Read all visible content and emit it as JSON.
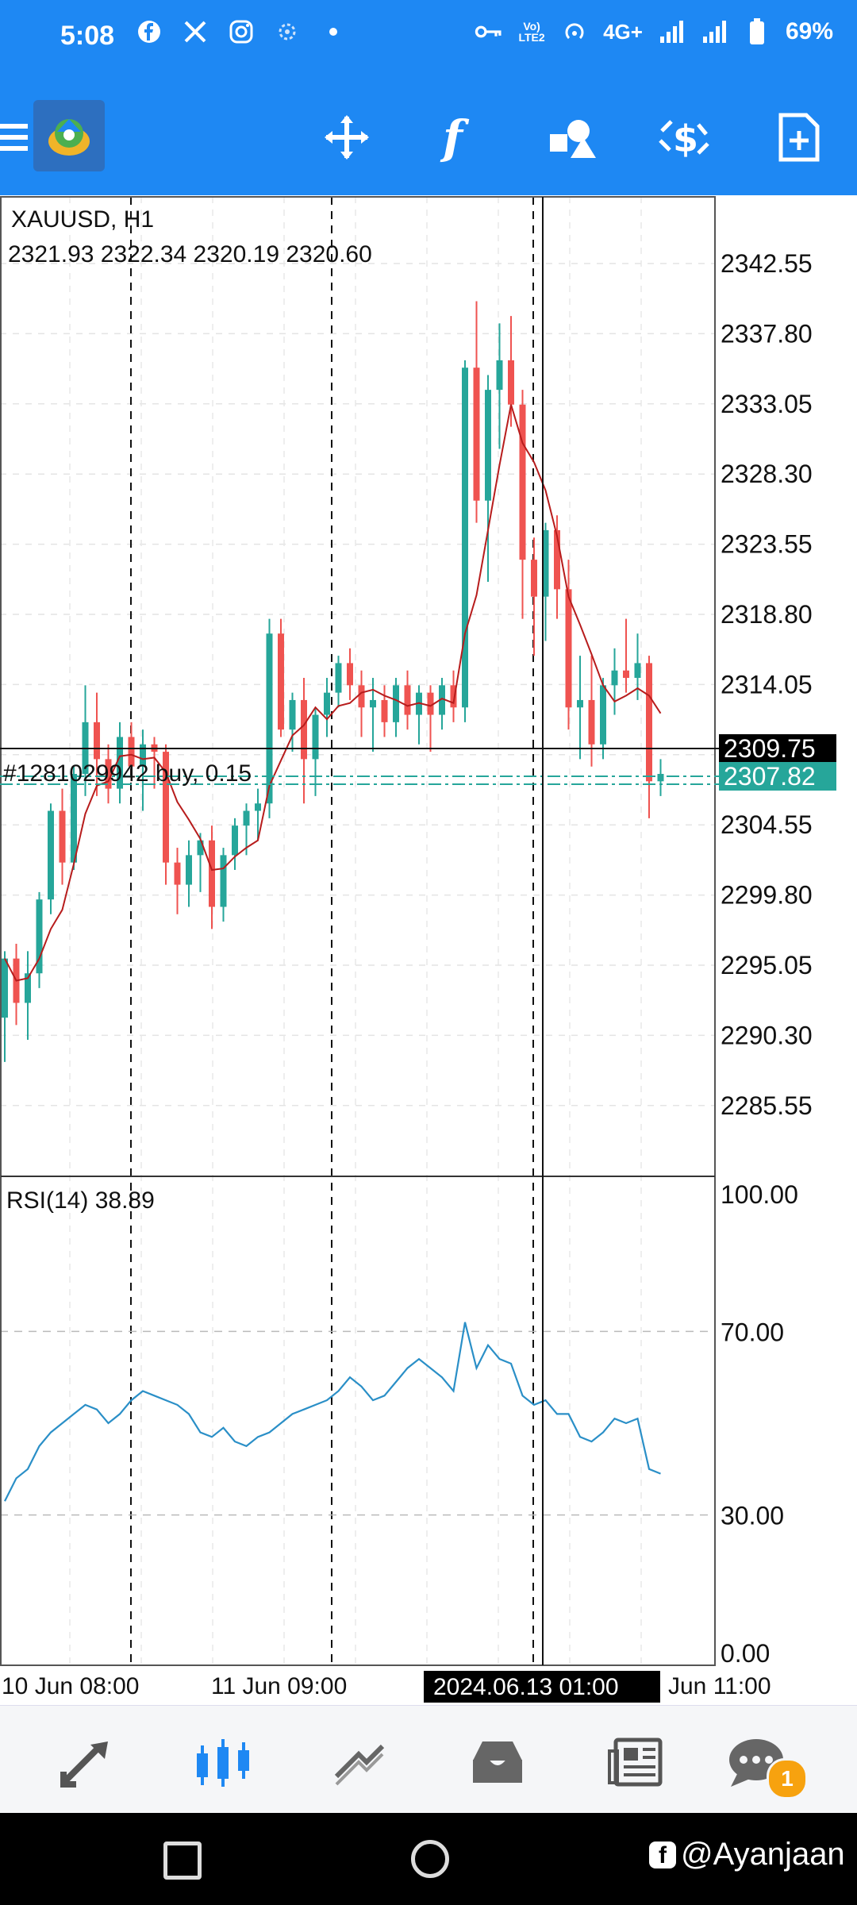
{
  "status_bar": {
    "time": "5:08",
    "battery": "69%",
    "network": "4G+",
    "left_icons": [
      "facebook-icon",
      "x-icon",
      "instagram-icon",
      "settings-icon",
      "dot-icon"
    ],
    "right_icons": [
      "key-icon",
      "volte-icon",
      "hotspot-icon",
      "4g-icon",
      "signal-icon",
      "signal-icon",
      "battery-icon"
    ]
  },
  "toolbar": {
    "icons": [
      "menu-icon",
      "app-logo-icon",
      "crosshair-icon",
      "indicators-icon",
      "objects-icon",
      "trade-icon",
      "new-order-icon"
    ]
  },
  "chart": {
    "symbol": "XAUUSD, H1",
    "ohlc": "2321.93 2322.34 2320.19 2320.60",
    "current_price": "2309.75",
    "position_price": "2307.82",
    "position_label": "#1281029942 buy, 0.15",
    "rsi_label": "RSI(14) 38.89",
    "date_labels": [
      "10 Jun 08:00",
      "11 Jun 09:00",
      "Jun 11:00"
    ],
    "crosshair_date": "2024.06.13 01:00",
    "price_ticks": [
      "2342.55",
      "2337.80",
      "2333.05",
      "2328.30",
      "2323.55",
      "2318.80",
      "2314.05",
      "2304.55",
      "2299.80",
      "2295.05",
      "2290.30",
      "2285.55"
    ],
    "rsi_ticks": [
      "100.00",
      "70.00",
      "30.00",
      "0.00"
    ],
    "colors": {
      "bull": "#26a69a",
      "bear": "#ef5350",
      "ma": "#b71c1c",
      "rsi": "#2a8fc7",
      "accent": "#1e88f3"
    }
  },
  "bottom_nav": {
    "items": [
      "quotes-icon",
      "chart-icon",
      "trade-icon",
      "history-icon",
      "news-icon",
      "messages-icon"
    ],
    "messages_badge": "1"
  },
  "watermark": "@Ayanjaan"
}
